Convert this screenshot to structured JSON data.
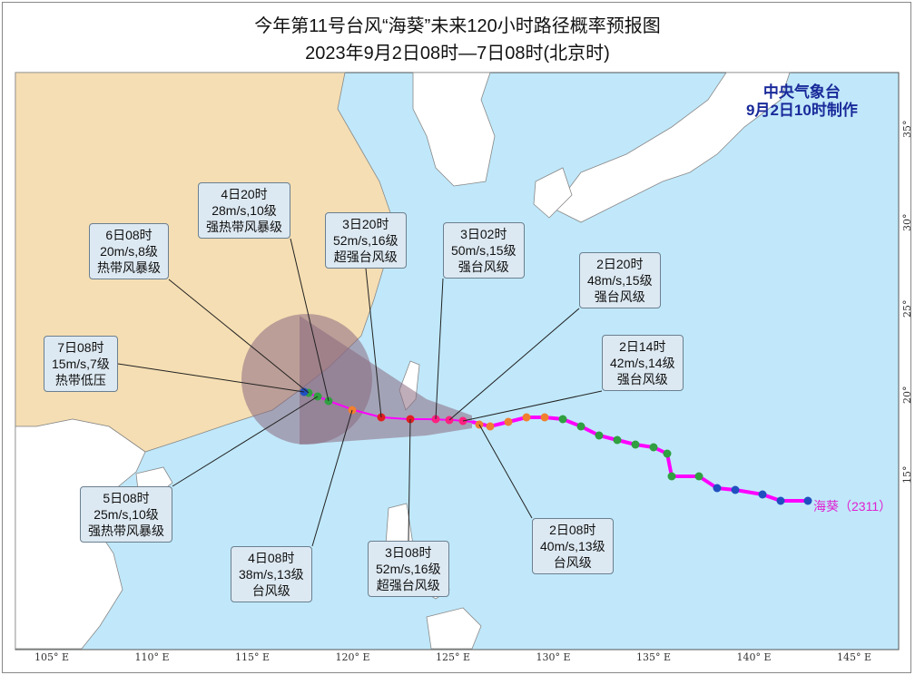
{
  "title": "今年第11号台风“海葵”未来120小时路径概率预报图",
  "subtitle": "2023年9月2日08时—7日08时(北京时)",
  "agency": {
    "name": "中央气象台",
    "issued": "9月2日10时制作"
  },
  "typhoon_label": "海葵（2311）",
  "colors": {
    "track": "#ff00ff",
    "land_china": "#f5deb3",
    "land_other": "#ffffff",
    "sea": "#c0e8fa",
    "cone": "#8a6a80"
  },
  "axes": {
    "lon": [
      "105° E",
      "110° E",
      "115° E",
      "120° E",
      "125° E",
      "130° E",
      "135° E",
      "140° E",
      "145° E"
    ],
    "lat": [
      "35° N",
      "30° N",
      "25° N",
      "20° N",
      "15° N"
    ]
  },
  "forecasts": [
    {
      "time": "2日08时",
      "wind": "40m/s,13级",
      "level": "台风级"
    },
    {
      "time": "2日14时",
      "wind": "42m/s,14级",
      "level": "强台风级"
    },
    {
      "time": "2日20时",
      "wind": "48m/s,15级",
      "level": "强台风级"
    },
    {
      "time": "3日02时",
      "wind": "50m/s,15级",
      "level": "强台风级"
    },
    {
      "time": "3日08时",
      "wind": "52m/s,16级",
      "level": "超强台风级"
    },
    {
      "time": "3日20时",
      "wind": "52m/s,16级",
      "level": "超强台风级"
    },
    {
      "time": "4日08时",
      "wind": "38m/s,13级",
      "level": "台风级"
    },
    {
      "time": "4日20时",
      "wind": "28m/s,10级",
      "level": "强热带风暴级"
    },
    {
      "time": "5日08时",
      "wind": "25m/s,10级",
      "level": "强热带风暴级"
    },
    {
      "time": "6日08时",
      "wind": "20m/s,8级",
      "level": "热带风暴级"
    },
    {
      "time": "7日08时",
      "wind": "15m/s,7级",
      "level": "热带低压"
    }
  ]
}
